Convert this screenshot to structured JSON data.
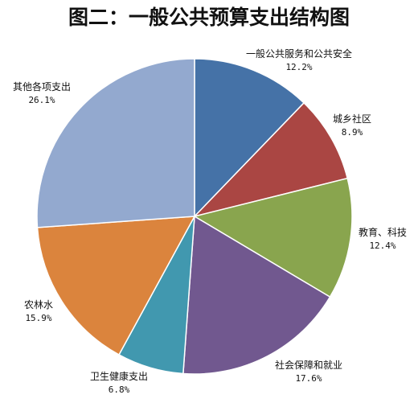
{
  "chart_data": {
    "type": "pie",
    "title": "图二：一般公共预算支出结构图",
    "start_angle_deg": 90,
    "direction": "clockwise",
    "legend": "none",
    "slices": [
      {
        "name": "一般公共服务和公共安全",
        "value": 12.2,
        "label": "12.2%",
        "color": "#4572A7",
        "label_side": "right"
      },
      {
        "name": "城乡社区",
        "value": 8.9,
        "label": "8.9%",
        "color": "#AA4643",
        "label_side": "right"
      },
      {
        "name": "教育、科技",
        "value": 12.4,
        "label": "12.4%",
        "color": "#89A54E",
        "label_side": "right"
      },
      {
        "name": "社会保障和就业",
        "value": 17.6,
        "label": "17.6%",
        "color": "#71588F",
        "label_side": "center"
      },
      {
        "name": "卫生健康支出",
        "value": 6.8,
        "label": "6.8%",
        "color": "#4198AF",
        "label_side": "center"
      },
      {
        "name": "农林水",
        "value": 15.9,
        "label": "15.9%",
        "color": "#DB843D",
        "label_side": "left"
      },
      {
        "name": "其他各项支出",
        "value": 26.1,
        "label": "26.1%",
        "color": "#93A9CF",
        "label_side": "left"
      }
    ]
  }
}
